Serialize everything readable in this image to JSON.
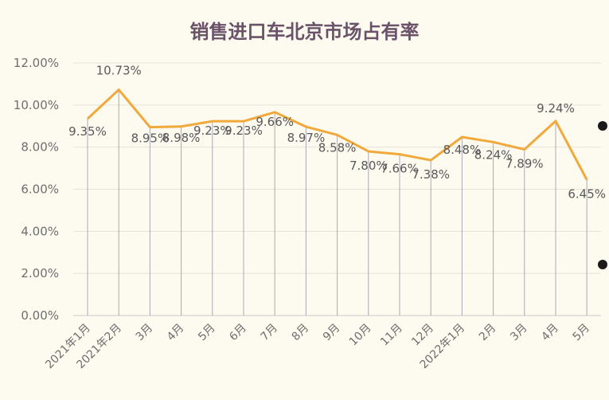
{
  "chart_data": {
    "type": "line",
    "title": "销售进口车北京市场占有率",
    "categories": [
      "2021年1月",
      "2021年2月",
      "3月",
      "4月",
      "5月",
      "6月",
      "7月",
      "8月",
      "9月",
      "10月",
      "11月",
      "12月",
      "2022年1月",
      "2月",
      "3月",
      "4月",
      "5月"
    ],
    "series": [
      {
        "values": [
          9.35,
          10.73,
          8.95,
          8.98,
          9.23,
          9.23,
          9.66,
          8.97,
          8.58,
          7.8,
          7.66,
          7.38,
          8.48,
          8.24,
          7.89,
          9.24,
          6.45
        ]
      }
    ],
    "data_labels": [
      "9.35%",
      "10.73%",
      "8.95%",
      "8.98%",
      "9.23%",
      "9.23%",
      "9.66%",
      "8.97%",
      "8.58%",
      "7.80%",
      "7.66%",
      "7.38%",
      "8.48%",
      "8.24%",
      "7.89%",
      "9.24%",
      "6.45%"
    ],
    "y_ticks": [
      "0.00%",
      "2.00%",
      "4.00%",
      "6.00%",
      "8.00%",
      "10.00%",
      "12.00%"
    ],
    "ylim": [
      0,
      12
    ],
    "xlabel": "",
    "ylabel": "",
    "grid": true,
    "line_color": "#f0a93a",
    "background_color": "#fdfaf0"
  }
}
